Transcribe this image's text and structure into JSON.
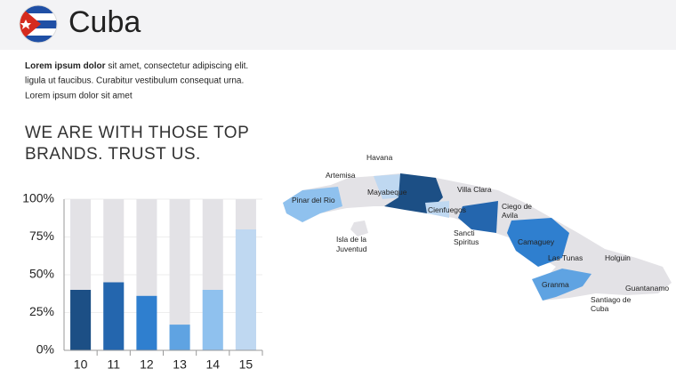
{
  "header": {
    "title": "Cuba"
  },
  "intro": {
    "bold": "Lorem ipsum dolor",
    "first": " sit amet, consectetur  adipiscing elit.",
    "lines": [
      "ligula ut faucibus.  Curabitur vestibulum  consequat urna.",
      "Lorem ipsum dolor sit amet"
    ]
  },
  "heading": [
    "WE ARE WITH THOSE TOP",
    "BRANDS. TRUST US."
  ],
  "chart_data": {
    "type": "bar",
    "categories": [
      "10",
      "11",
      "12",
      "13",
      "14",
      "15"
    ],
    "values": [
      40,
      45,
      36,
      17,
      40,
      80
    ],
    "colors": [
      "#1c4f85",
      "#2466ae",
      "#2f7fcf",
      "#5fa3e2",
      "#8fc1ee",
      "#bfd8f1"
    ],
    "track_color": "#e3e2e6",
    "ylim": [
      0,
      100
    ],
    "yticks": [
      {
        "value": 0,
        "label": "0%"
      },
      {
        "value": 25,
        "label": "25%"
      },
      {
        "value": 50,
        "label": "50%"
      },
      {
        "value": 75,
        "label": "75%"
      },
      {
        "value": 100,
        "label": "100%"
      }
    ],
    "grid": true
  },
  "map": {
    "labels": [
      [
        "Havana"
      ],
      [
        "Artemisa"
      ],
      [
        "Pinar del Rio"
      ],
      [
        "Mayabeque"
      ],
      [
        "Villa Clara"
      ],
      [
        "Cienfuegos"
      ],
      [
        "Ciego de",
        "Avila"
      ],
      [
        "Sancti",
        "Spiritus"
      ],
      [
        "Isla de la",
        "Juventud"
      ],
      [
        "Camaguey"
      ],
      [
        "Las Tunas"
      ],
      [
        "Holguin"
      ],
      [
        "Granma"
      ],
      [
        "Guantanamo"
      ],
      [
        "Santiago de",
        "Cuba"
      ]
    ]
  }
}
